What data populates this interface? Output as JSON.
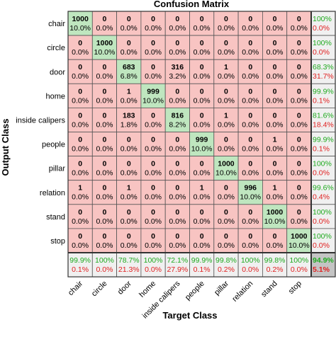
{
  "chart_data": {
    "type": "heatmap",
    "title": "Confusion Matrix",
    "xlabel": "Target Class",
    "ylabel": "Output Class",
    "classes": [
      "chair",
      "circle",
      "door",
      "home",
      "inside calipers",
      "people",
      "pillar",
      "relation",
      "stand",
      "stop"
    ],
    "matrix": [
      [
        1000,
        0,
        0,
        0,
        0,
        0,
        0,
        0,
        0,
        0
      ],
      [
        0,
        1000,
        0,
        0,
        0,
        0,
        0,
        0,
        0,
        0
      ],
      [
        0,
        0,
        683,
        0,
        316,
        0,
        1,
        0,
        0,
        0
      ],
      [
        0,
        0,
        1,
        999,
        0,
        0,
        0,
        0,
        0,
        0
      ],
      [
        0,
        0,
        183,
        0,
        816,
        0,
        1,
        0,
        0,
        0
      ],
      [
        0,
        0,
        0,
        0,
        0,
        999,
        0,
        0,
        1,
        0
      ],
      [
        0,
        0,
        0,
        0,
        0,
        0,
        1000,
        0,
        0,
        0
      ],
      [
        1,
        0,
        1,
        0,
        0,
        1,
        0,
        996,
        1,
        0
      ],
      [
        0,
        0,
        0,
        0,
        0,
        0,
        0,
        0,
        1000,
        0
      ],
      [
        0,
        0,
        0,
        0,
        0,
        0,
        0,
        0,
        0,
        1000
      ]
    ],
    "cell_percents": [
      [
        "10.0%",
        "0.0%",
        "0.0%",
        "0.0%",
        "0.0%",
        "0.0%",
        "0.0%",
        "0.0%",
        "0.0%",
        "0.0%"
      ],
      [
        "0.0%",
        "10.0%",
        "0.0%",
        "0.0%",
        "0.0%",
        "0.0%",
        "0.0%",
        "0.0%",
        "0.0%",
        "0.0%"
      ],
      [
        "0.0%",
        "0.0%",
        "6.8%",
        "0.0%",
        "3.2%",
        "0.0%",
        "0.0%",
        "0.0%",
        "0.0%",
        "0.0%"
      ],
      [
        "0.0%",
        "0.0%",
        "0.0%",
        "10.0%",
        "0.0%",
        "0.0%",
        "0.0%",
        "0.0%",
        "0.0%",
        "0.0%"
      ],
      [
        "0.0%",
        "0.0%",
        "1.8%",
        "0.0%",
        "8.2%",
        "0.0%",
        "0.0%",
        "0.0%",
        "0.0%",
        "0.0%"
      ],
      [
        "0.0%",
        "0.0%",
        "0.0%",
        "0.0%",
        "0.0%",
        "10.0%",
        "0.0%",
        "0.0%",
        "0.0%",
        "0.0%"
      ],
      [
        "0.0%",
        "0.0%",
        "0.0%",
        "0.0%",
        "0.0%",
        "0.0%",
        "10.0%",
        "0.0%",
        "0.0%",
        "0.0%"
      ],
      [
        "0.0%",
        "0.0%",
        "0.0%",
        "0.0%",
        "0.0%",
        "0.0%",
        "0.0%",
        "10.0%",
        "0.0%",
        "0.0%"
      ],
      [
        "0.0%",
        "0.0%",
        "0.0%",
        "0.0%",
        "0.0%",
        "0.0%",
        "0.0%",
        "0.0%",
        "10.0%",
        "0.0%"
      ],
      [
        "0.0%",
        "0.0%",
        "0.0%",
        "0.0%",
        "0.0%",
        "0.0%",
        "0.0%",
        "0.0%",
        "0.0%",
        "10.0%"
      ]
    ],
    "row_summary": [
      [
        "100%",
        "0.0%"
      ],
      [
        "100%",
        "0.0%"
      ],
      [
        "68.3%",
        "31.7%"
      ],
      [
        "99.9%",
        "0.1%"
      ],
      [
        "81.6%",
        "18.4%"
      ],
      [
        "99.9%",
        "0.1%"
      ],
      [
        "100%",
        "0.0%"
      ],
      [
        "99.6%",
        "0.4%"
      ],
      [
        "100%",
        "0.0%"
      ],
      [
        "100%",
        "0.0%"
      ]
    ],
    "col_summary": [
      [
        "99.9%",
        "0.1%"
      ],
      [
        "100%",
        "0.0%"
      ],
      [
        "78.7%",
        "21.3%"
      ],
      [
        "100%",
        "0.0%"
      ],
      [
        "72.1%",
        "27.9%"
      ],
      [
        "99.9%",
        "0.1%"
      ],
      [
        "99.8%",
        "0.2%"
      ],
      [
        "100%",
        "0.0%"
      ],
      [
        "99.8%",
        "0.2%"
      ],
      [
        "100%",
        "0.0%"
      ]
    ],
    "overall": [
      "94.9%",
      "5.1%"
    ]
  },
  "colors": {
    "correct_cell": "#bfe6bf",
    "incorrect_cell": "#f8c4c2",
    "summary_cell": "#f0f0f0",
    "overall_cell": "#c4c4c4",
    "green_text": "#1faa1f",
    "red_text": "#e02020",
    "text": "#000000",
    "grid_line": "#555555"
  }
}
